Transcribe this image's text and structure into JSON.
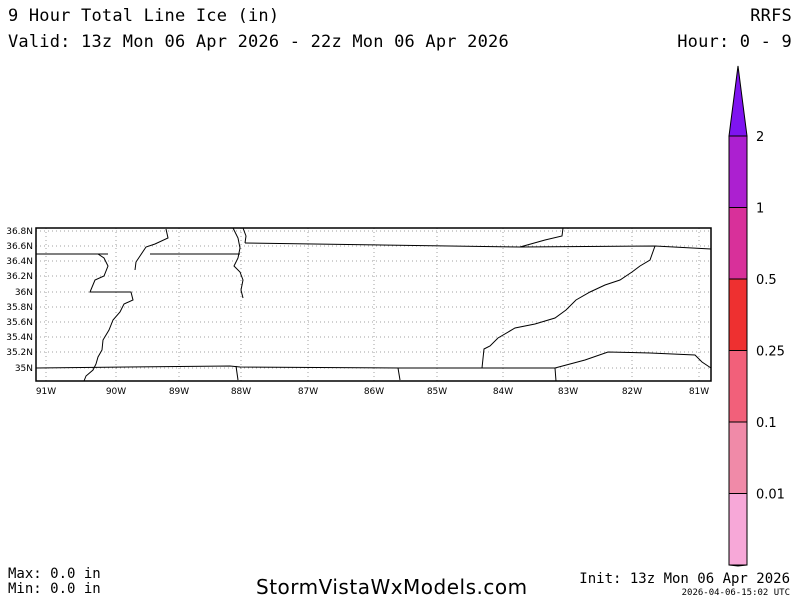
{
  "header": {
    "title": "9 Hour Total Line Ice (in)",
    "valid": "Valid: 13z Mon 06 Apr 2026 - 22z Mon 06 Apr 2026",
    "model": "RRFS",
    "hours": "Hour: 0 - 9"
  },
  "map": {
    "lat_labels": [
      "36.8N",
      "36.6N",
      "36.4N",
      "36.2N",
      "36N",
      "35.8N",
      "35.6N",
      "35.4N",
      "35.2N",
      "35N"
    ],
    "lon_labels": [
      "91W",
      "90W",
      "89W",
      "88W",
      "87W",
      "86W",
      "85W",
      "84W",
      "83W",
      "82W",
      "81W"
    ],
    "line_color": "#000000",
    "grid_color": "#a0a0a0"
  },
  "colorbar": {
    "levels": [
      {
        "label": "0.01",
        "color": "#f7a8d8"
      },
      {
        "label": "0.1",
        "color": "#f08aa8"
      },
      {
        "label": "0.25",
        "color": "#f2607a"
      },
      {
        "label": "0.5",
        "color": "#ee3030"
      },
      {
        "label": "1",
        "color": "#d8309a"
      },
      {
        "label": "2",
        "color": "#ac20d0"
      }
    ],
    "top_arrow_color": "#7f14f0"
  },
  "footer": {
    "max": "Max: 0.0 in",
    "min": "Min: 0.0 in",
    "website": "StormVistaWxModels.com",
    "init": "Init: 13z Mon 06 Apr 2026",
    "timestamp": "2026-04-06-15:02 UTC"
  }
}
